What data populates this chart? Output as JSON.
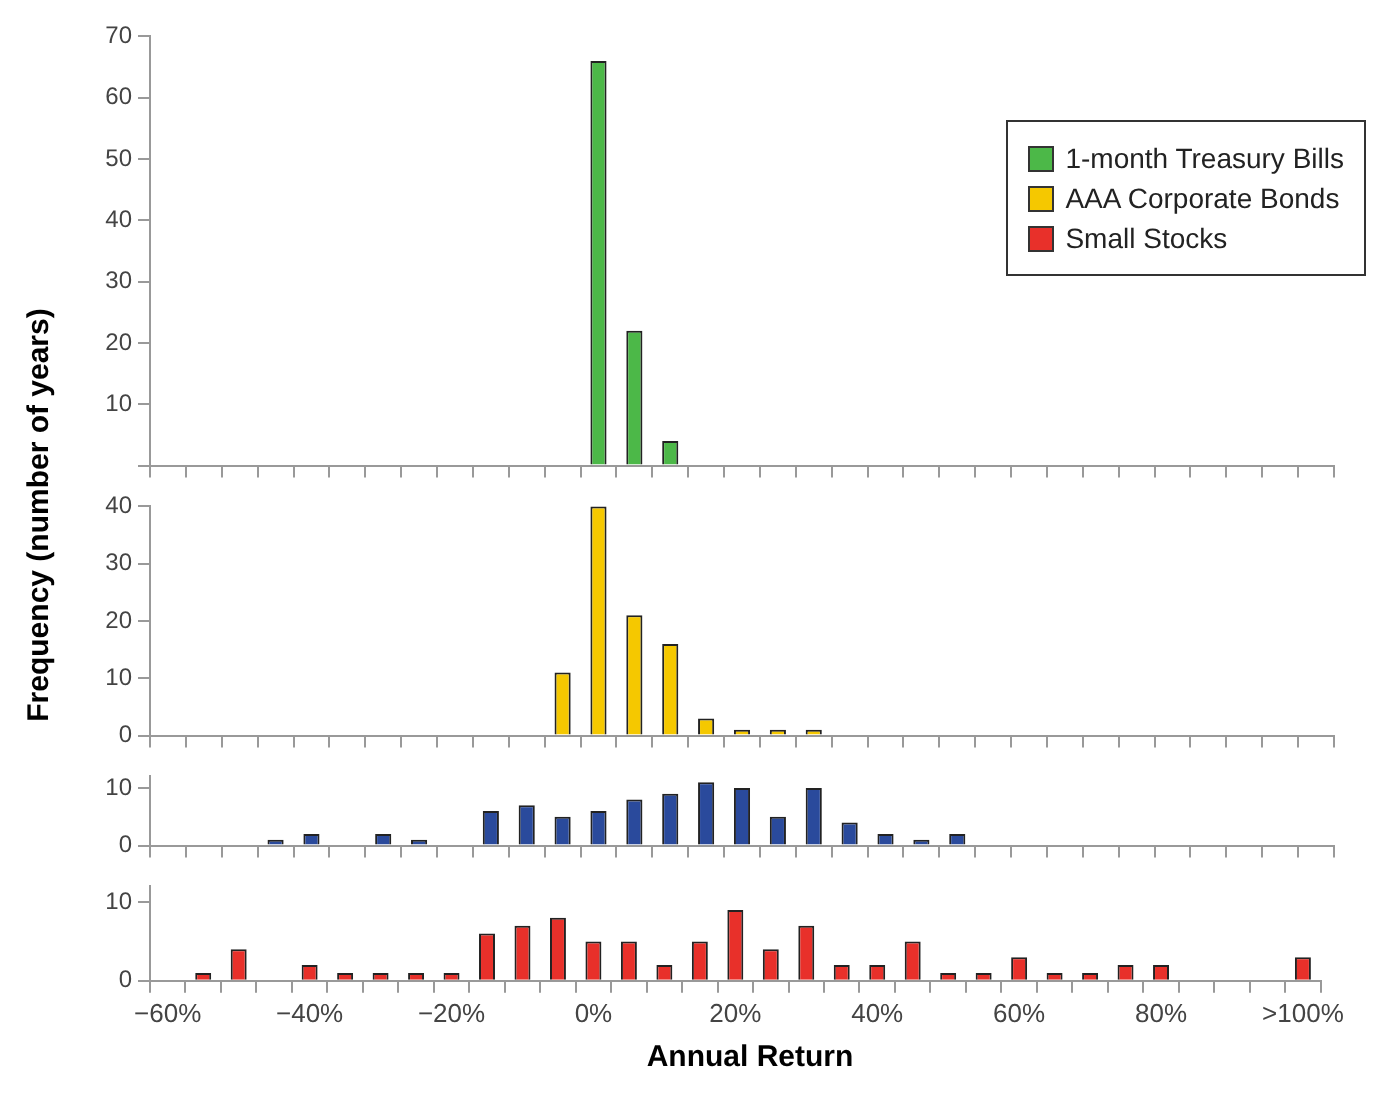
{
  "chart_data": [
    {
      "type": "bar",
      "ylabel": "Frequency (number of years)",
      "legend": "top right",
      "tick_labels": "y",
      "categories": [
        null,
        null,
        null,
        null,
        null,
        null,
        null,
        null,
        null,
        null,
        null,
        null,
        null,
        null,
        null,
        null,
        null,
        null,
        null,
        null,
        null,
        null,
        null,
        null,
        null,
        null,
        null,
        null,
        null,
        null,
        null,
        null,
        null
      ],
      "ylim": [
        0,
        70
      ],
      "yticks": [
        {
          "value": 0,
          "label": null
        },
        10,
        20,
        30,
        40,
        50,
        60,
        70
      ],
      "series": [
        {
          "name": "1-month Treasury Bills",
          "color": "#4cb848",
          "values": [
            0,
            0,
            0,
            0,
            0,
            0,
            0,
            0,
            0,
            0,
            0,
            0,
            66,
            22,
            4,
            0,
            0,
            0,
            0,
            0,
            0,
            0,
            0,
            0,
            0,
            0,
            0,
            0,
            0,
            0,
            0,
            0,
            0
          ]
        }
      ]
    },
    {
      "type": "bar",
      "tick_labels": "y",
      "categories": [
        null,
        null,
        null,
        null,
        null,
        null,
        null,
        null,
        null,
        null,
        null,
        null,
        null,
        null,
        null,
        null,
        null,
        null,
        null,
        null,
        null,
        null,
        null,
        null,
        null,
        null,
        null,
        null,
        null,
        null,
        null,
        null,
        null
      ],
      "ylim": [
        0,
        40
      ],
      "yticks": [
        0,
        10,
        20,
        30,
        40
      ],
      "series": [
        {
          "name": "AAA Corporate Bonds",
          "color": "#f5c800",
          "values": [
            0,
            0,
            0,
            0,
            0,
            0,
            0,
            0,
            0,
            0,
            0,
            11,
            40,
            21,
            16,
            3,
            1,
            1,
            1,
            0,
            0,
            0,
            0,
            0,
            0,
            0,
            0,
            0,
            0,
            0,
            0,
            0,
            0
          ]
        }
      ]
    },
    {
      "type": "bar",
      "tick_labels": "y",
      "categories": [
        null,
        null,
        null,
        null,
        null,
        null,
        null,
        null,
        null,
        null,
        null,
        null,
        null,
        null,
        null,
        null,
        null,
        null,
        null,
        null,
        null,
        null,
        null,
        null,
        null,
        null,
        null,
        null,
        null,
        null,
        null,
        null,
        null
      ],
      "ylim": [
        0,
        12
      ],
      "yticks": [
        0,
        10
      ],
      "series": [
        {
          "color": "#2a4a9c",
          "values": [
            0,
            0,
            0,
            1,
            2,
            0,
            2,
            1,
            0,
            6,
            7,
            5,
            6,
            8,
            9,
            11,
            10,
            5,
            10,
            4,
            2,
            1,
            2,
            0,
            0,
            0,
            0,
            0,
            0,
            0,
            0,
            0,
            0
          ]
        }
      ]
    },
    {
      "type": "bar",
      "xlabel": "Annual Return",
      "categories": [
        "−60%",
        null,
        null,
        null,
        "−40%",
        null,
        null,
        null,
        "−20%",
        null,
        null,
        null,
        "0%",
        null,
        null,
        null,
        "20%",
        null,
        null,
        null,
        "40%",
        null,
        null,
        null,
        "60%",
        null,
        null,
        null,
        "80%",
        null,
        null,
        null,
        ">100%"
      ],
      "ylim": [
        0,
        12
      ],
      "yticks": [
        0,
        10
      ],
      "series": [
        {
          "name": "Small Stocks",
          "color": "#e8302a",
          "values": [
            0,
            1,
            4,
            0,
            2,
            1,
            1,
            1,
            1,
            6,
            7,
            8,
            5,
            5,
            2,
            5,
            9,
            4,
            7,
            2,
            2,
            5,
            1,
            1,
            3,
            1,
            1,
            2,
            2,
            0,
            0,
            0,
            3
          ]
        }
      ]
    }
  ]
}
